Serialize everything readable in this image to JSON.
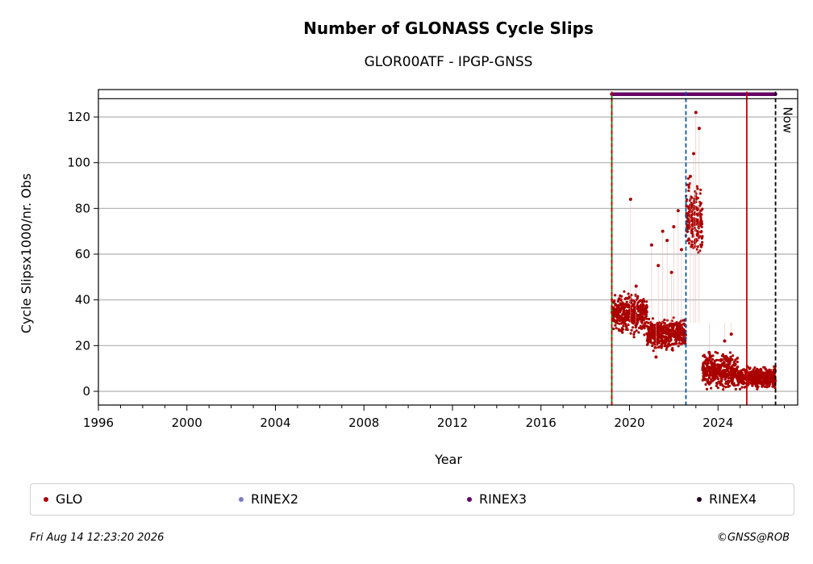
{
  "chart_data": {
    "type": "scatter",
    "title": "Number of GLONASS Cycle Slips",
    "subtitle": "GLOR00ATF - IPGP-GNSS",
    "xlabel": "Year",
    "ylabel": "Cycle Slipsx1000/nr. Obs",
    "xlim": [
      1996,
      2027.6
    ],
    "ylim": [
      -6,
      132
    ],
    "xticks": [
      1996,
      2000,
      2004,
      2008,
      2012,
      2016,
      2020,
      2024
    ],
    "yticks": [
      0,
      20,
      40,
      60,
      80,
      100,
      120
    ],
    "grid": "horizontal",
    "legend_placement": "bottom",
    "series": [
      {
        "name": "GLO",
        "color": "#aa0000",
        "segments": [
          {
            "x_start": 2019.2,
            "x_end": 2020.8,
            "y_mean": 34,
            "y_spread": 4.5
          },
          {
            "x_start": 2020.8,
            "x_end": 2022.55,
            "y_mean": 25,
            "y_spread": 3.5
          },
          {
            "x_start": 2022.55,
            "x_end": 2023.3,
            "y_mean": 75,
            "y_spread": 9
          },
          {
            "x_start": 2023.3,
            "x_end": 2024.9,
            "y_mean": 9,
            "y_spread": 4
          },
          {
            "x_start": 2024.9,
            "x_end": 2026.6,
            "y_mean": 6,
            "y_spread": 2.5
          }
        ],
        "outliers": [
          {
            "x": 2020.05,
            "y": 84
          },
          {
            "x": 2020.3,
            "y": 46
          },
          {
            "x": 2021.0,
            "y": 64
          },
          {
            "x": 2021.3,
            "y": 55
          },
          {
            "x": 2021.5,
            "y": 70
          },
          {
            "x": 2021.7,
            "y": 66
          },
          {
            "x": 2021.9,
            "y": 52
          },
          {
            "x": 2022.0,
            "y": 72
          },
          {
            "x": 2022.2,
            "y": 79
          },
          {
            "x": 2022.35,
            "y": 62
          },
          {
            "x": 2022.9,
            "y": 104
          },
          {
            "x": 2023.0,
            "y": 122
          },
          {
            "x": 2023.15,
            "y": 115
          },
          {
            "x": 2022.75,
            "y": 94
          },
          {
            "x": 2024.6,
            "y": 25
          },
          {
            "x": 2024.3,
            "y": 22
          },
          {
            "x": 2021.2,
            "y": 15
          },
          {
            "x": 2023.6,
            "y": 17
          }
        ]
      },
      {
        "name": "RINEX2",
        "color": "#7b7bbf"
      },
      {
        "name": "RINEX3",
        "color": "#660066",
        "x_start": 2019.2,
        "x_end": 2026.6,
        "y": 130
      },
      {
        "name": "RINEX4",
        "color": "#220022"
      }
    ],
    "events": [
      {
        "x": 2019.2,
        "color": "#009900",
        "style": "solid"
      },
      {
        "x": 2019.2,
        "color": "#cc0000",
        "style": "dashed"
      },
      {
        "x": 2022.55,
        "color": "#0055aa",
        "style": "dashed"
      },
      {
        "x": 2025.3,
        "color": "#cc0000",
        "style": "solid"
      },
      {
        "x": 2026.6,
        "color": "#000000",
        "style": "dashed",
        "label": "Now"
      }
    ],
    "header_band_y": 128
  },
  "footer": {
    "timestamp": "Fri Aug 14 12:23:20 2026",
    "credit": "©GNSS@ROB"
  }
}
